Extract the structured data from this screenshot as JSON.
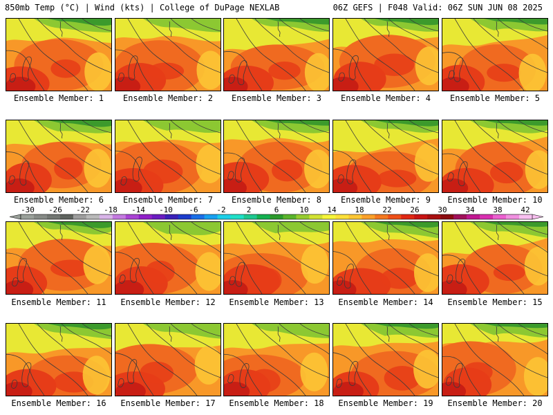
{
  "header": {
    "left": "850mb Temp (°C) | Wind (kts) | College of DuPage NEXLAB",
    "right": "06Z GEFS | F048 Valid: 06Z SUN JUN 08 2025"
  },
  "members": [
    {
      "label": "Ensemble Member: 1"
    },
    {
      "label": "Ensemble Member: 2"
    },
    {
      "label": "Ensemble Member: 3"
    },
    {
      "label": "Ensemble Member: 4"
    },
    {
      "label": "Ensemble Member: 5"
    },
    {
      "label": "Ensemble Member: 6"
    },
    {
      "label": "Ensemble Member: 7"
    },
    {
      "label": "Ensemble Member: 8"
    },
    {
      "label": "Ensemble Member: 9"
    },
    {
      "label": "Ensemble Member: 10"
    },
    {
      "label": "Ensemble Member: 11"
    },
    {
      "label": "Ensemble Member: 12"
    },
    {
      "label": "Ensemble Member: 13"
    },
    {
      "label": "Ensemble Member: 14"
    },
    {
      "label": "Ensemble Member: 15"
    },
    {
      "label": "Ensemble Member: 16"
    },
    {
      "label": "Ensemble Member: 17"
    },
    {
      "label": "Ensemble Member: 18"
    },
    {
      "label": "Ensemble Member: 19"
    },
    {
      "label": "Ensemble Member: 20"
    }
  ],
  "colorbar": {
    "ticks": [
      "-30",
      "-26",
      "-22",
      "-18",
      "-14",
      "-10",
      "-6",
      "-2",
      "2",
      "6",
      "10",
      "14",
      "18",
      "22",
      "26",
      "30",
      "34",
      "38",
      "42"
    ],
    "colors": [
      "#9aa09a",
      "#868a86",
      "#727672",
      "#5e625e",
      "#9d9d9d",
      "#b9b9b9",
      "#d8b4e8",
      "#c47ae0",
      "#aa44d4",
      "#9020c8",
      "#6a1cc0",
      "#3a20b8",
      "#1c3ccc",
      "#1a6ee8",
      "#18a0f0",
      "#1ccfe8",
      "#20e0c8",
      "#1ec890",
      "#14b050",
      "#2c9a2c",
      "#5ab42c",
      "#96cc30",
      "#d2e234",
      "#f6f53a",
      "#fce03a",
      "#fcc634",
      "#faa02a",
      "#f47820",
      "#ee5018",
      "#e02814",
      "#c81414",
      "#a81010",
      "#8a0c10",
      "#a0105a",
      "#c01890",
      "#d830b0",
      "#ec60d0",
      "#f090e0",
      "#f8c0f0"
    ]
  },
  "colors": {
    "cold": "#3c9a2c",
    "cool": "#8cc832",
    "mild": "#e8e834",
    "warm": "#fcc434",
    "warmer": "#f89828",
    "hot": "#f06a20",
    "hotter": "#e63c18",
    "hottest": "#c81e14",
    "contour": "#3a3a3a"
  }
}
